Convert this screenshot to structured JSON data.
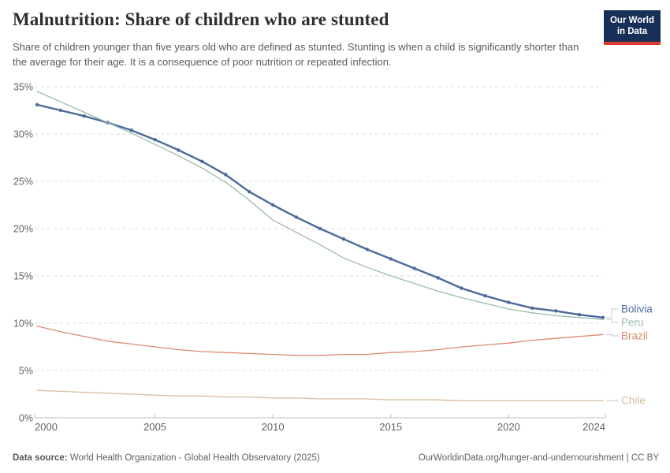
{
  "header": {
    "title": "Malnutrition: Share of children who are stunted",
    "subtitle": "Share of children younger than five years old who are defined as stunted. Stunting is when a child is significantly shorter than the average for their age. It is a consequence of poor nutrition or repeated infection.",
    "logo_line1": "Our World",
    "logo_line2": "in Data",
    "logo_bg_color": "#183058",
    "logo_accent_color": "#dc3a2c"
  },
  "footer": {
    "source_label": "Data source:",
    "source_text": " World Health Organization - Global Health Observatory (2025)",
    "link_text": "OurWorldinData.org/hunger-and-undernourishment | CC BY"
  },
  "chart_data": {
    "type": "line",
    "title": "Malnutrition: Share of children who are stunted",
    "xlabel": "",
    "ylabel": "",
    "x": [
      2000,
      2001,
      2002,
      2003,
      2004,
      2005,
      2006,
      2007,
      2008,
      2009,
      2010,
      2011,
      2012,
      2013,
      2014,
      2015,
      2016,
      2017,
      2018,
      2019,
      2020,
      2021,
      2022,
      2023,
      2024
    ],
    "series": [
      {
        "name": "Bolivia",
        "color": "#4C6A9C",
        "marker": true,
        "width": 2.4,
        "values": [
          33.1,
          32.5,
          31.9,
          31.2,
          30.4,
          29.4,
          28.3,
          27.1,
          25.7,
          23.9,
          22.5,
          21.2,
          20.0,
          18.9,
          17.8,
          16.8,
          15.8,
          14.8,
          13.7,
          12.9,
          12.2,
          11.6,
          11.3,
          10.9,
          10.6
        ]
      },
      {
        "name": "Peru",
        "color": "#9ABCAB",
        "marker": false,
        "width": 1.3,
        "values": [
          34.5,
          33.4,
          32.3,
          31.2,
          30.1,
          28.9,
          27.7,
          26.4,
          24.9,
          23.0,
          20.9,
          19.6,
          18.3,
          16.9,
          15.9,
          15.0,
          14.2,
          13.4,
          12.7,
          12.1,
          11.5,
          11.1,
          10.8,
          10.6,
          10.4
        ]
      },
      {
        "name": "Brazil",
        "color": "#DD8A70",
        "marker": false,
        "width": 1.3,
        "values": [
          9.7,
          9.1,
          8.6,
          8.1,
          7.8,
          7.5,
          7.2,
          7.0,
          6.9,
          6.8,
          6.7,
          6.6,
          6.6,
          6.7,
          6.7,
          6.9,
          7.0,
          7.2,
          7.5,
          7.7,
          7.9,
          8.2,
          8.4,
          8.6,
          8.8
        ]
      },
      {
        "name": "Chile",
        "color": "#D5BD9F",
        "marker": false,
        "width": 1.3,
        "values": [
          2.9,
          2.8,
          2.7,
          2.6,
          2.5,
          2.4,
          2.3,
          2.3,
          2.2,
          2.2,
          2.1,
          2.1,
          2.0,
          2.0,
          2.0,
          1.9,
          1.9,
          1.9,
          1.8,
          1.8,
          1.8,
          1.8,
          1.8,
          1.8,
          1.8
        ]
      }
    ],
    "ylim": [
      0,
      35
    ],
    "yticks": [
      0,
      5,
      10,
      15,
      20,
      25,
      30,
      35
    ],
    "ytick_suffix": "%",
    "xticks": [
      2000,
      2005,
      2010,
      2015,
      2020,
      2024
    ],
    "grid": "horizontal-dashed",
    "legend_position": "right-end-of-line",
    "axis_text_color": "#636363",
    "grid_color": "#dddddd",
    "axis_line_color": "#c0c0c0",
    "connector_color": "#c8c8c8"
  }
}
